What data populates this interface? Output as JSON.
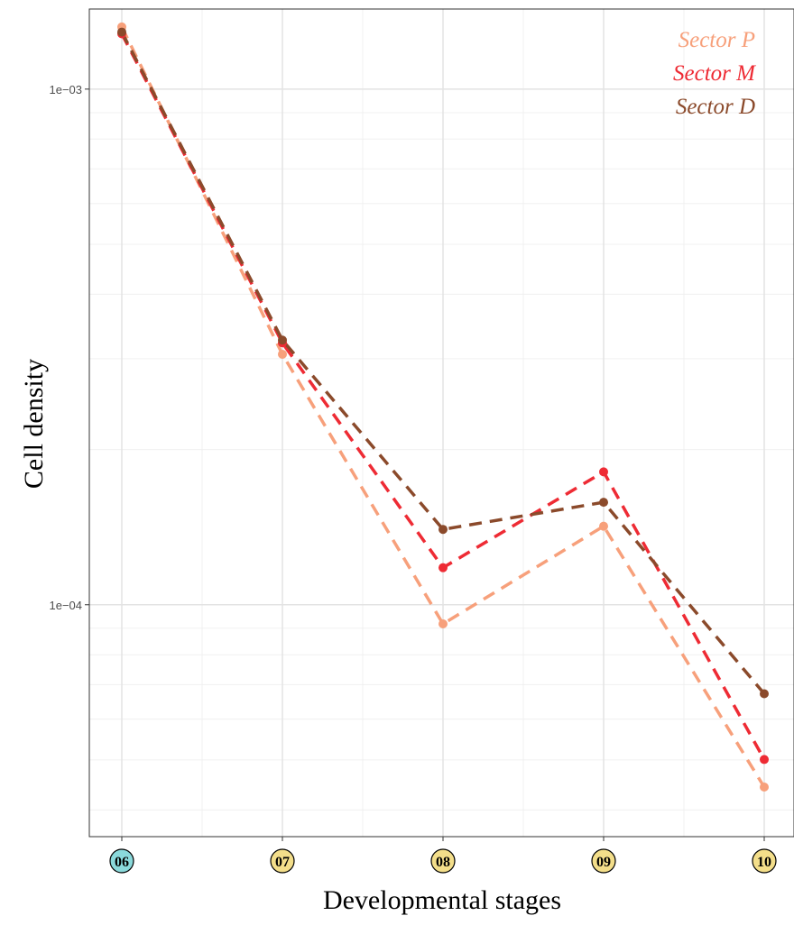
{
  "chart_data": {
    "type": "line",
    "xlabel": "Developmental stages",
    "ylabel": "Cell density",
    "y_scale": "log",
    "ylim": [
      3.55e-05,
      0.00143
    ],
    "y_ticks": [
      {
        "value": 0.001,
        "label": "1e−03"
      },
      {
        "value": 0.0001,
        "label": "1e−04"
      }
    ],
    "grid": true,
    "legend_position": "top-right",
    "categories": [
      {
        "label": "06",
        "highlight": "#8ad9db"
      },
      {
        "label": "07",
        "highlight": "#f3de8a"
      },
      {
        "label": "08",
        "highlight": "#f3de8a"
      },
      {
        "label": "09",
        "highlight": "#f3de8a"
      },
      {
        "label": "10",
        "highlight": "#f3de8a"
      }
    ],
    "series": [
      {
        "name": "Sector P",
        "color": "#f7a07b",
        "values": [
          0.00132,
          0.000306,
          9.18e-05,
          0.000142,
          4.43e-05
        ]
      },
      {
        "name": "Sector M",
        "color": "#ee2b34",
        "values": [
          0.00128,
          0.000322,
          0.000118,
          0.000181,
          5.01e-05
        ]
      },
      {
        "name": "Sector D",
        "color": "#8b4a2b",
        "values": [
          0.00129,
          0.000326,
          0.00014,
          0.000158,
          6.72e-05
        ]
      }
    ]
  }
}
